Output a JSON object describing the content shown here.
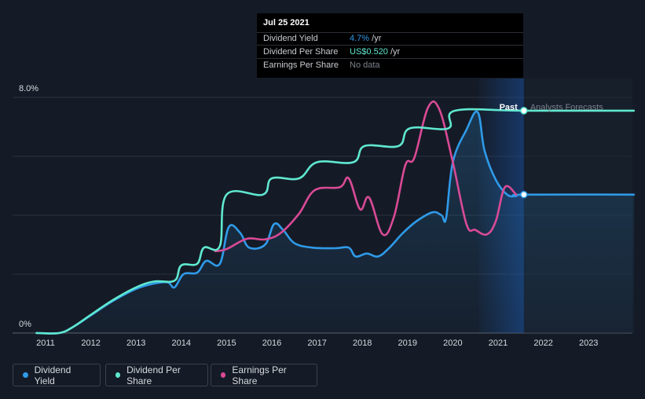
{
  "tooltip": {
    "date": "Jul 25 2021",
    "rows": [
      {
        "label": "Dividend Yield",
        "value": "4.7%",
        "unit": " /yr"
      },
      {
        "label": "Dividend Per Share",
        "value": "US$0.520",
        "unit": " /yr"
      },
      {
        "label": "Earnings Per Share",
        "value": "No data",
        "unit": ""
      }
    ]
  },
  "regions": {
    "past": "Past",
    "forecast": "Analysts Forecasts"
  },
  "legend": [
    {
      "label": "Dividend Yield",
      "color": "#2f9ae8"
    },
    {
      "label": "Dividend Per Share",
      "color": "#5fe8d0"
    },
    {
      "label": "Earnings Per Share",
      "color": "#d94a96"
    }
  ],
  "chart_data": {
    "type": "line",
    "y_tick_labels": [
      "8.0%",
      "0%"
    ],
    "ylim": [
      0,
      8.0
    ],
    "xlim": [
      2010.6,
      2024.0
    ],
    "x_ticks": [
      2011,
      2012,
      2013,
      2014,
      2015,
      2016,
      2017,
      2018,
      2019,
      2020,
      2021,
      2022,
      2023
    ],
    "x_tick_labels": [
      "2011",
      "2012",
      "2013",
      "2014",
      "2015",
      "2016",
      "2017",
      "2018",
      "2019",
      "2020",
      "2021",
      "2022",
      "2023"
    ],
    "forecast_start": 2021.57,
    "series": [
      {
        "name": "Dividend Yield",
        "color": "#2f9ae8",
        "fill": true,
        "points": [
          [
            2010.8,
            0
          ],
          [
            2011.3,
            0
          ],
          [
            2011.6,
            0.2
          ],
          [
            2012.0,
            0.6
          ],
          [
            2012.5,
            1.1
          ],
          [
            2013.0,
            1.5
          ],
          [
            2013.4,
            1.68
          ],
          [
            2013.7,
            1.72
          ],
          [
            2013.85,
            1.55
          ],
          [
            2014.05,
            2.0
          ],
          [
            2014.35,
            2.05
          ],
          [
            2014.55,
            2.45
          ],
          [
            2014.85,
            2.35
          ],
          [
            2015.05,
            3.6
          ],
          [
            2015.3,
            3.4
          ],
          [
            2015.5,
            2.9
          ],
          [
            2015.85,
            3.0
          ],
          [
            2016.05,
            3.7
          ],
          [
            2016.25,
            3.5
          ],
          [
            2016.5,
            3.05
          ],
          [
            2016.9,
            2.9
          ],
          [
            2017.4,
            2.88
          ],
          [
            2017.7,
            2.9
          ],
          [
            2017.85,
            2.6
          ],
          [
            2018.1,
            2.7
          ],
          [
            2018.35,
            2.6
          ],
          [
            2018.6,
            2.9
          ],
          [
            2018.9,
            3.4
          ],
          [
            2019.2,
            3.8
          ],
          [
            2019.55,
            4.1
          ],
          [
            2019.75,
            4.0
          ],
          [
            2019.85,
            3.9
          ],
          [
            2020.0,
            5.8
          ],
          [
            2020.3,
            6.9
          ],
          [
            2020.55,
            7.5
          ],
          [
            2020.7,
            6.2
          ],
          [
            2020.95,
            5.2
          ],
          [
            2021.2,
            4.7
          ],
          [
            2021.4,
            4.65
          ],
          [
            2021.57,
            4.7
          ],
          [
            2024.0,
            4.7
          ]
        ]
      },
      {
        "name": "Dividend Per Share",
        "color": "#5fe8d0",
        "fill": false,
        "points": [
          [
            2010.8,
            0
          ],
          [
            2011.3,
            0
          ],
          [
            2011.6,
            0.2
          ],
          [
            2012.0,
            0.62
          ],
          [
            2012.5,
            1.13
          ],
          [
            2013.0,
            1.55
          ],
          [
            2013.4,
            1.75
          ],
          [
            2013.85,
            1.78
          ],
          [
            2014.0,
            2.3
          ],
          [
            2014.35,
            2.35
          ],
          [
            2014.5,
            2.9
          ],
          [
            2014.85,
            2.95
          ],
          [
            2015.0,
            4.7
          ],
          [
            2015.8,
            4.7
          ],
          [
            2016.0,
            5.25
          ],
          [
            2016.6,
            5.25
          ],
          [
            2017.0,
            5.8
          ],
          [
            2017.8,
            5.8
          ],
          [
            2018.05,
            6.35
          ],
          [
            2018.8,
            6.35
          ],
          [
            2019.05,
            6.95
          ],
          [
            2019.9,
            6.95
          ],
          [
            2020.05,
            7.55
          ],
          [
            2021.57,
            7.55
          ],
          [
            2024.0,
            7.55
          ]
        ]
      },
      {
        "name": "Earnings Per Share",
        "color": "#d94a96",
        "fill": false,
        "points": [
          [
            2014.75,
            2.78
          ],
          [
            2015.0,
            2.85
          ],
          [
            2015.45,
            3.2
          ],
          [
            2015.85,
            3.18
          ],
          [
            2016.2,
            3.4
          ],
          [
            2016.6,
            4.05
          ],
          [
            2016.95,
            4.85
          ],
          [
            2017.5,
            4.95
          ],
          [
            2017.7,
            5.25
          ],
          [
            2017.95,
            4.2
          ],
          [
            2018.15,
            4.6
          ],
          [
            2018.45,
            3.35
          ],
          [
            2018.7,
            3.95
          ],
          [
            2018.95,
            5.7
          ],
          [
            2019.15,
            5.95
          ],
          [
            2019.45,
            7.65
          ],
          [
            2019.7,
            7.6
          ],
          [
            2020.0,
            5.8
          ],
          [
            2020.3,
            3.7
          ],
          [
            2020.5,
            3.5
          ],
          [
            2020.75,
            3.35
          ],
          [
            2020.95,
            3.8
          ],
          [
            2021.15,
            4.95
          ],
          [
            2021.4,
            4.7
          ]
        ]
      }
    ]
  }
}
